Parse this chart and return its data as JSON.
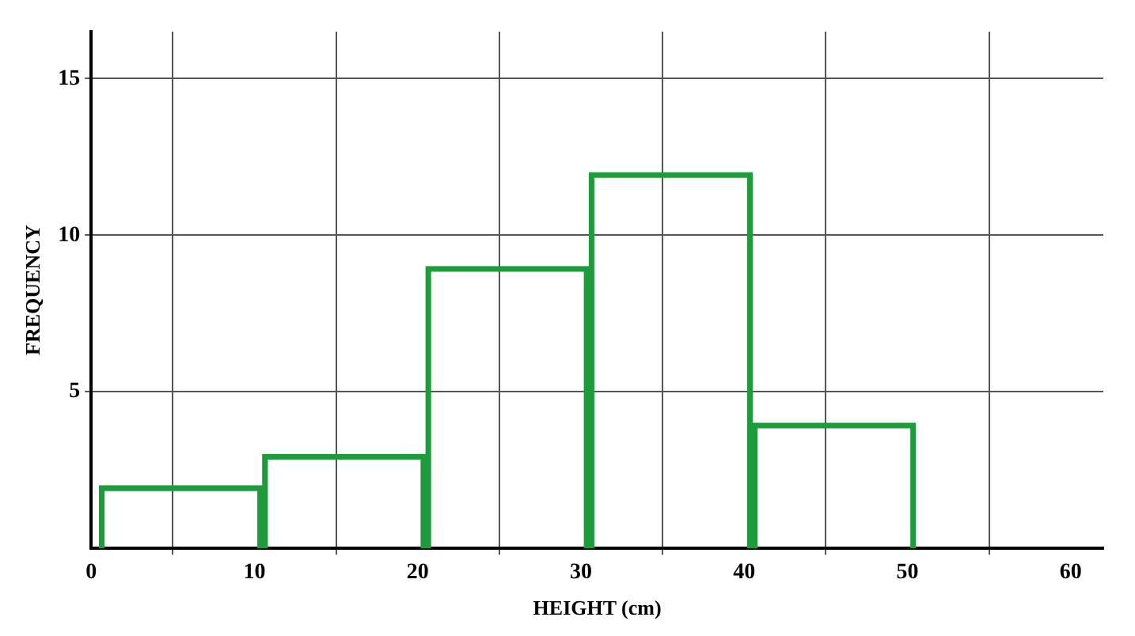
{
  "chart_data": {
    "type": "histogram",
    "xlabel": "HEIGHT (cm)",
    "ylabel": "FREQUENCY",
    "bins": [
      0.5,
      10.5,
      20.5,
      30.5,
      40.5,
      50.5
    ],
    "values": [
      2,
      3,
      9,
      12,
      4
    ],
    "color": "#1e9c3c",
    "xlim": [
      0,
      62
    ],
    "xticks": [
      0,
      10,
      20,
      30,
      40,
      50,
      60
    ],
    "ylim": [
      0,
      16.5
    ],
    "yticks": [
      5,
      10,
      15
    ],
    "grid": true,
    "legend": false
  }
}
